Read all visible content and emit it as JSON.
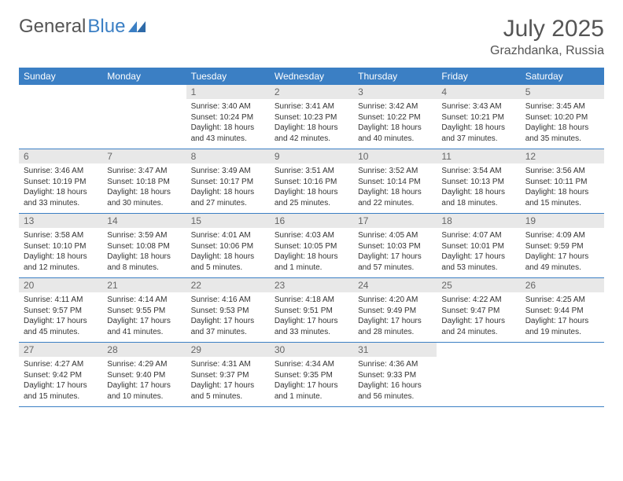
{
  "brand": {
    "part1": "General",
    "part2": "Blue"
  },
  "title": "July 2025",
  "location": "Grazhdanka, Russia",
  "colors": {
    "header_bg": "#3b7fc4",
    "header_text": "#ffffff",
    "daynum_bg": "#e8e8e8",
    "daynum_text": "#666666",
    "cell_text": "#333333",
    "border": "#3b7fc4",
    "page_bg": "#ffffff",
    "title_color": "#555555"
  },
  "typography": {
    "title_fontsize": 30,
    "location_fontsize": 16,
    "header_fontsize": 12,
    "daynum_fontsize": 12,
    "body_fontsize": 10
  },
  "weekdays": [
    "Sunday",
    "Monday",
    "Tuesday",
    "Wednesday",
    "Thursday",
    "Friday",
    "Saturday"
  ],
  "weeks": [
    [
      null,
      null,
      {
        "n": "1",
        "sr": "3:40 AM",
        "ss": "10:24 PM",
        "dl": "18 hours and 43 minutes."
      },
      {
        "n": "2",
        "sr": "3:41 AM",
        "ss": "10:23 PM",
        "dl": "18 hours and 42 minutes."
      },
      {
        "n": "3",
        "sr": "3:42 AM",
        "ss": "10:22 PM",
        "dl": "18 hours and 40 minutes."
      },
      {
        "n": "4",
        "sr": "3:43 AM",
        "ss": "10:21 PM",
        "dl": "18 hours and 37 minutes."
      },
      {
        "n": "5",
        "sr": "3:45 AM",
        "ss": "10:20 PM",
        "dl": "18 hours and 35 minutes."
      }
    ],
    [
      {
        "n": "6",
        "sr": "3:46 AM",
        "ss": "10:19 PM",
        "dl": "18 hours and 33 minutes."
      },
      {
        "n": "7",
        "sr": "3:47 AM",
        "ss": "10:18 PM",
        "dl": "18 hours and 30 minutes."
      },
      {
        "n": "8",
        "sr": "3:49 AM",
        "ss": "10:17 PM",
        "dl": "18 hours and 27 minutes."
      },
      {
        "n": "9",
        "sr": "3:51 AM",
        "ss": "10:16 PM",
        "dl": "18 hours and 25 minutes."
      },
      {
        "n": "10",
        "sr": "3:52 AM",
        "ss": "10:14 PM",
        "dl": "18 hours and 22 minutes."
      },
      {
        "n": "11",
        "sr": "3:54 AM",
        "ss": "10:13 PM",
        "dl": "18 hours and 18 minutes."
      },
      {
        "n": "12",
        "sr": "3:56 AM",
        "ss": "10:11 PM",
        "dl": "18 hours and 15 minutes."
      }
    ],
    [
      {
        "n": "13",
        "sr": "3:58 AM",
        "ss": "10:10 PM",
        "dl": "18 hours and 12 minutes."
      },
      {
        "n": "14",
        "sr": "3:59 AM",
        "ss": "10:08 PM",
        "dl": "18 hours and 8 minutes."
      },
      {
        "n": "15",
        "sr": "4:01 AM",
        "ss": "10:06 PM",
        "dl": "18 hours and 5 minutes."
      },
      {
        "n": "16",
        "sr": "4:03 AM",
        "ss": "10:05 PM",
        "dl": "18 hours and 1 minute."
      },
      {
        "n": "17",
        "sr": "4:05 AM",
        "ss": "10:03 PM",
        "dl": "17 hours and 57 minutes."
      },
      {
        "n": "18",
        "sr": "4:07 AM",
        "ss": "10:01 PM",
        "dl": "17 hours and 53 minutes."
      },
      {
        "n": "19",
        "sr": "4:09 AM",
        "ss": "9:59 PM",
        "dl": "17 hours and 49 minutes."
      }
    ],
    [
      {
        "n": "20",
        "sr": "4:11 AM",
        "ss": "9:57 PM",
        "dl": "17 hours and 45 minutes."
      },
      {
        "n": "21",
        "sr": "4:14 AM",
        "ss": "9:55 PM",
        "dl": "17 hours and 41 minutes."
      },
      {
        "n": "22",
        "sr": "4:16 AM",
        "ss": "9:53 PM",
        "dl": "17 hours and 37 minutes."
      },
      {
        "n": "23",
        "sr": "4:18 AM",
        "ss": "9:51 PM",
        "dl": "17 hours and 33 minutes."
      },
      {
        "n": "24",
        "sr": "4:20 AM",
        "ss": "9:49 PM",
        "dl": "17 hours and 28 minutes."
      },
      {
        "n": "25",
        "sr": "4:22 AM",
        "ss": "9:47 PM",
        "dl": "17 hours and 24 minutes."
      },
      {
        "n": "26",
        "sr": "4:25 AM",
        "ss": "9:44 PM",
        "dl": "17 hours and 19 minutes."
      }
    ],
    [
      {
        "n": "27",
        "sr": "4:27 AM",
        "ss": "9:42 PM",
        "dl": "17 hours and 15 minutes."
      },
      {
        "n": "28",
        "sr": "4:29 AM",
        "ss": "9:40 PM",
        "dl": "17 hours and 10 minutes."
      },
      {
        "n": "29",
        "sr": "4:31 AM",
        "ss": "9:37 PM",
        "dl": "17 hours and 5 minutes."
      },
      {
        "n": "30",
        "sr": "4:34 AM",
        "ss": "9:35 PM",
        "dl": "17 hours and 1 minute."
      },
      {
        "n": "31",
        "sr": "4:36 AM",
        "ss": "9:33 PM",
        "dl": "16 hours and 56 minutes."
      },
      null,
      null
    ]
  ],
  "labels": {
    "sunrise": "Sunrise:",
    "sunset": "Sunset:",
    "daylight": "Daylight:"
  }
}
